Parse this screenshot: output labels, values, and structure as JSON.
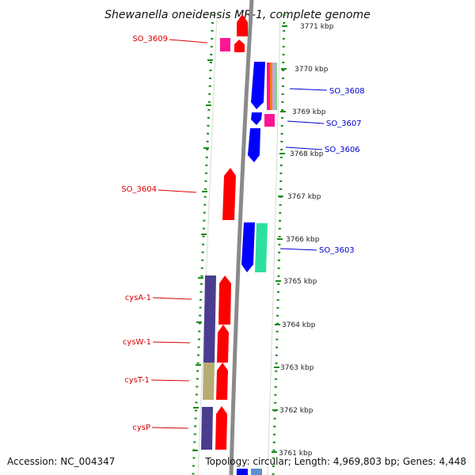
{
  "title": "Shewanella oneidensis MR-1, complete genome",
  "footer": {
    "accession": "Accession: NC_004347",
    "topology": "Topology: circular; Length: 4,969,803 bp; Genes: 4,448"
  },
  "scale_labels": [
    "3771 kbp",
    "3770 kbp",
    "3769 kbp",
    "3768 kbp",
    "3767 kbp",
    "3766 kbp",
    "3765 kbp",
    "3764 kbp",
    "3763 kbp",
    "3762 kbp",
    "3761 kbp"
  ],
  "gene_labels": {
    "forward": [
      "SO_3609",
      "SO_3604",
      "cysA-1",
      "cysW-1",
      "cysT-1",
      "cysP"
    ],
    "reverse": [
      "SO_3608",
      "SO_3607",
      "SO_3606",
      "SO_3603"
    ]
  },
  "colors": {
    "forward_strand": "#ff0000",
    "reverse_strand": "#0000ff",
    "forward_label": "#d60000",
    "reverse_label": "#0000cc",
    "backbone": "#8a8a8a",
    "tick_green": "#1a8a1a",
    "cog_purple": "#4a3d8f",
    "cog_olive": "#b5ad74",
    "cog_pink": "#ff1493",
    "cog_teal": "#2de0a0"
  }
}
